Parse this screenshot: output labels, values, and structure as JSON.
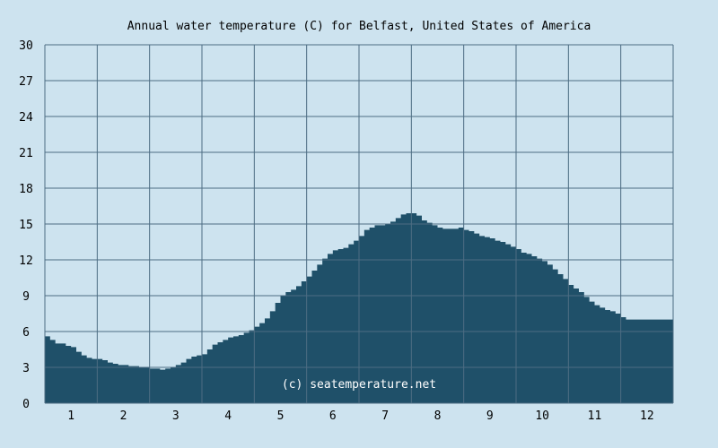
{
  "chart_data": {
    "type": "area",
    "title": "Annual water temperature (C) for Belfast, United States of America",
    "xlabel": "",
    "ylabel": "",
    "x_ticks": [
      "1",
      "2",
      "3",
      "4",
      "5",
      "6",
      "7",
      "8",
      "9",
      "10",
      "11",
      "12"
    ],
    "y_ticks": [
      "0",
      "3",
      "6",
      "9",
      "12",
      "15",
      "18",
      "21",
      "24",
      "27",
      "30"
    ],
    "xlim": [
      0.5,
      12.5
    ],
    "ylim": [
      0,
      30
    ],
    "grid": true,
    "watermark": "(c) seatemperature.net",
    "colors": {
      "background": "#cde3ef",
      "fill": "#1f5069",
      "grid": "#4d6d83"
    },
    "series": [
      {
        "x": [
          0.5,
          0.6,
          0.7,
          0.8,
          0.9,
          1.0,
          1.1,
          1.2,
          1.3,
          1.4,
          1.5,
          1.6,
          1.7,
          1.8,
          1.9,
          2.0,
          2.1,
          2.2,
          2.3,
          2.4,
          2.5,
          2.6,
          2.7,
          2.8,
          2.9,
          3.0,
          3.1,
          3.2,
          3.3,
          3.4,
          3.5,
          3.6,
          3.7,
          3.8,
          3.9,
          4.0,
          4.1,
          4.2,
          4.3,
          4.4,
          4.5,
          4.6,
          4.7,
          4.8,
          4.9,
          5.0,
          5.1,
          5.2,
          5.3,
          5.4,
          5.5,
          5.6,
          5.7,
          5.8,
          5.9,
          6.0,
          6.1,
          6.2,
          6.3,
          6.4,
          6.5,
          6.6,
          6.7,
          6.8,
          6.9,
          7.0,
          7.1,
          7.2,
          7.3,
          7.4,
          7.5,
          7.6,
          7.7,
          7.8,
          7.9,
          8.0,
          8.1,
          8.2,
          8.3,
          8.4,
          8.5,
          8.6,
          8.7,
          8.8,
          8.9,
          9.0,
          9.1,
          9.2,
          9.3,
          9.4,
          9.5,
          9.6,
          9.7,
          9.8,
          9.9,
          10.0,
          10.1,
          10.2,
          10.3,
          10.4,
          10.5,
          10.6,
          10.7,
          10.8,
          10.9,
          11.0,
          11.1,
          11.2,
          11.3,
          11.4,
          11.5,
          11.6,
          11.7,
          11.8,
          11.9,
          12.0,
          12.1,
          12.2,
          12.3,
          12.4,
          12.5
        ],
        "values": [
          5.6,
          5.3,
          5.0,
          5.0,
          4.8,
          4.7,
          4.3,
          4.0,
          3.8,
          3.7,
          3.7,
          3.6,
          3.4,
          3.3,
          3.2,
          3.2,
          3.1,
          3.1,
          3.0,
          3.0,
          2.9,
          2.9,
          2.8,
          2.9,
          3.0,
          3.2,
          3.4,
          3.7,
          3.9,
          4.0,
          4.1,
          4.5,
          4.9,
          5.1,
          5.3,
          5.5,
          5.6,
          5.7,
          5.9,
          6.1,
          6.4,
          6.7,
          7.1,
          7.7,
          8.4,
          9.0,
          9.3,
          9.5,
          9.8,
          10.2,
          10.6,
          11.1,
          11.6,
          12.1,
          12.5,
          12.8,
          12.9,
          13.0,
          13.3,
          13.6,
          14.0,
          14.5,
          14.7,
          14.9,
          14.9,
          15.0,
          15.2,
          15.5,
          15.8,
          15.9,
          15.9,
          15.7,
          15.3,
          15.1,
          14.9,
          14.7,
          14.6,
          14.6,
          14.6,
          14.7,
          14.5,
          14.4,
          14.2,
          14.0,
          13.9,
          13.8,
          13.6,
          13.5,
          13.3,
          13.1,
          12.9,
          12.6,
          12.5,
          12.3,
          12.1,
          11.9,
          11.6,
          11.2,
          10.8,
          10.4,
          9.9,
          9.6,
          9.3,
          8.9,
          8.5,
          8.2,
          8.0,
          7.8,
          7.7,
          7.5,
          7.2,
          7.0,
          7.0,
          7.0,
          7.0,
          7.0,
          7.0,
          7.0,
          7.0,
          7.0,
          7.0
        ]
      }
    ]
  }
}
